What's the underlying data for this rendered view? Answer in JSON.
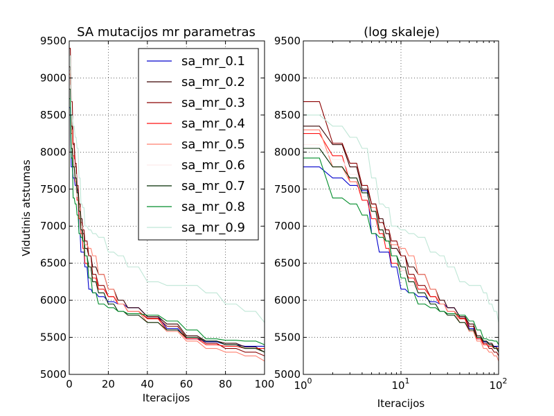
{
  "chart_data": [
    {
      "type": "line",
      "title": "SA mutacijos mr parametras",
      "xlabel": "Iteracijos",
      "ylabel": "Vidutinis atstumas",
      "xscale": "linear",
      "xlim": [
        0,
        100
      ],
      "ylim": [
        5000,
        9500
      ],
      "x_ticks": [
        "0",
        "20",
        "40",
        "60",
        "80",
        "100"
      ],
      "y_ticks": [
        "5000",
        "5500",
        "6000",
        "6500",
        "7000",
        "7500",
        "8000",
        "8500",
        "9000",
        "9500"
      ],
      "grid": true,
      "legend": "top-right",
      "x": [
        1,
        2,
        3,
        4,
        5,
        6,
        7,
        8,
        10,
        12,
        15,
        20,
        25,
        30,
        40,
        50,
        60,
        70,
        80,
        90,
        100
      ],
      "series": [
        {
          "name": "sa_mr_0.1",
          "color": "#0000cc",
          "values": [
            7800,
            7650,
            7550,
            7480,
            6900,
            6650,
            6650,
            6450,
            6150,
            6100,
            6050,
            5980,
            5950,
            5900,
            5780,
            5620,
            5480,
            5440,
            5400,
            5380,
            5380
          ]
        },
        {
          "name": "sa_mr_0.2",
          "color": "#3a0000",
          "values": [
            8350,
            8100,
            7800,
            7500,
            7300,
            7100,
            6900,
            6700,
            6600,
            6450,
            6350,
            6150,
            6000,
            5900,
            5780,
            5680,
            5520,
            5450,
            5420,
            5370,
            5300
          ]
        },
        {
          "name": "sa_mr_0.3",
          "color": "#8b0000",
          "values": [
            8680,
            8120,
            7850,
            7550,
            7300,
            7050,
            6950,
            6800,
            6600,
            6350,
            6200,
            6050,
            5950,
            5850,
            5760,
            5650,
            5500,
            5420,
            5350,
            5300,
            5250
          ]
        },
        {
          "name": "sa_mr_0.4",
          "color": "#ff1010",
          "values": [
            8250,
            7950,
            7600,
            7350,
            7100,
            6900,
            6700,
            6500,
            6400,
            6300,
            6150,
            6050,
            5950,
            5850,
            5750,
            5600,
            5480,
            5400,
            5380,
            5350,
            5350
          ]
        },
        {
          "name": "sa_mr_0.5",
          "color": "#ff7f6e",
          "values": [
            8300,
            7800,
            7600,
            7400,
            7250,
            7000,
            6800,
            6750,
            6700,
            6600,
            6350,
            6150,
            5950,
            5850,
            5700,
            5580,
            5450,
            5350,
            5300,
            5250,
            5180
          ]
        },
        {
          "name": "sa_mr_0.6",
          "color": "#fdeaea",
          "values": [
            8100,
            7900,
            7700,
            7400,
            7200,
            7000,
            6800,
            6600,
            6400,
            6200,
            6100,
            5950,
            5850,
            5780,
            5700,
            5600,
            5500,
            5450,
            5400,
            5350,
            5300
          ]
        },
        {
          "name": "sa_mr_0.7",
          "color": "#002a00",
          "values": [
            8050,
            7800,
            7650,
            7450,
            7200,
            6950,
            6800,
            6600,
            6450,
            6250,
            6100,
            5950,
            5850,
            5800,
            5700,
            5600,
            5500,
            5450,
            5400,
            5350,
            5300
          ]
        },
        {
          "name": "sa_mr_0.8",
          "color": "#008c2a",
          "values": [
            7920,
            7380,
            7300,
            7150,
            6900,
            6850,
            6800,
            6600,
            6300,
            6100,
            5950,
            5900,
            5850,
            5820,
            5800,
            5720,
            5600,
            5480,
            5460,
            5450,
            5400
          ]
        },
        {
          "name": "sa_mr_0.9",
          "color": "#bfe6d6",
          "values": [
            8500,
            8350,
            8200,
            8050,
            7650,
            7300,
            7250,
            7000,
            6950,
            6900,
            6850,
            6650,
            6600,
            6450,
            6250,
            6200,
            6200,
            6100,
            5950,
            5850,
            5700
          ]
        }
      ]
    },
    {
      "type": "line",
      "title": "(log skaleje)",
      "xlabel": "Iteracijos",
      "ylabel": "",
      "xscale": "log",
      "xlim": [
        1,
        100
      ],
      "ylim": [
        5000,
        9500
      ],
      "x_ticks": [
        {
          "base": "10",
          "exp": "0"
        },
        {
          "base": "10",
          "exp": "1"
        },
        {
          "base": "10",
          "exp": "2"
        }
      ],
      "y_ticks": [
        "5000",
        "5500",
        "6000",
        "6500",
        "7000",
        "7500",
        "8000",
        "8500",
        "9000",
        "9500"
      ],
      "grid": true,
      "shares_series_with": 0
    }
  ]
}
